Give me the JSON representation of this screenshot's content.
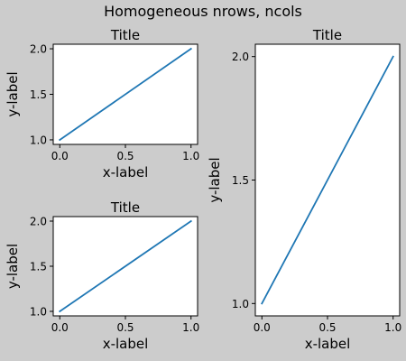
{
  "figure": {
    "suptitle": "Homogeneous nrows, ncols",
    "background": "#cccccc",
    "line_color": "#1f77b4"
  },
  "chart_data": [
    {
      "type": "line",
      "title": "Title",
      "xlabel": "x-label",
      "ylabel": "y-label",
      "x": [
        0,
        1
      ],
      "y": [
        1,
        2
      ],
      "xlim": [
        -0.05,
        1.05
      ],
      "ylim": [
        0.95,
        2.05
      ],
      "xticks": [
        0,
        0.5,
        1
      ],
      "xtick_labels": [
        "0.0",
        "0.5",
        "1.0"
      ],
      "yticks": [
        1,
        1.5,
        2
      ],
      "ytick_labels": [
        "1.0",
        "1.5",
        "2.0"
      ],
      "grid": false
    },
    {
      "type": "line",
      "title": "Title",
      "xlabel": "x-label",
      "ylabel": "y-label",
      "x": [
        0,
        1
      ],
      "y": [
        1,
        2
      ],
      "xlim": [
        -0.05,
        1.05
      ],
      "ylim": [
        0.95,
        2.05
      ],
      "xticks": [
        0,
        0.5,
        1
      ],
      "xtick_labels": [
        "0.0",
        "0.5",
        "1.0"
      ],
      "yticks": [
        1,
        1.5,
        2
      ],
      "ytick_labels": [
        "1.0",
        "1.5",
        "2.0"
      ],
      "grid": false
    },
    {
      "type": "line",
      "title": "Title",
      "xlabel": "x-label",
      "ylabel": "y-label",
      "x": [
        0,
        1
      ],
      "y": [
        1,
        2
      ],
      "xlim": [
        -0.05,
        1.05
      ],
      "ylim": [
        0.95,
        2.05
      ],
      "xticks": [
        0,
        0.5,
        1
      ],
      "xtick_labels": [
        "0.0",
        "0.5",
        "1.0"
      ],
      "yticks": [
        1,
        1.5,
        2
      ],
      "ytick_labels": [
        "1.0",
        "1.5",
        "2.0"
      ],
      "grid": false
    }
  ]
}
